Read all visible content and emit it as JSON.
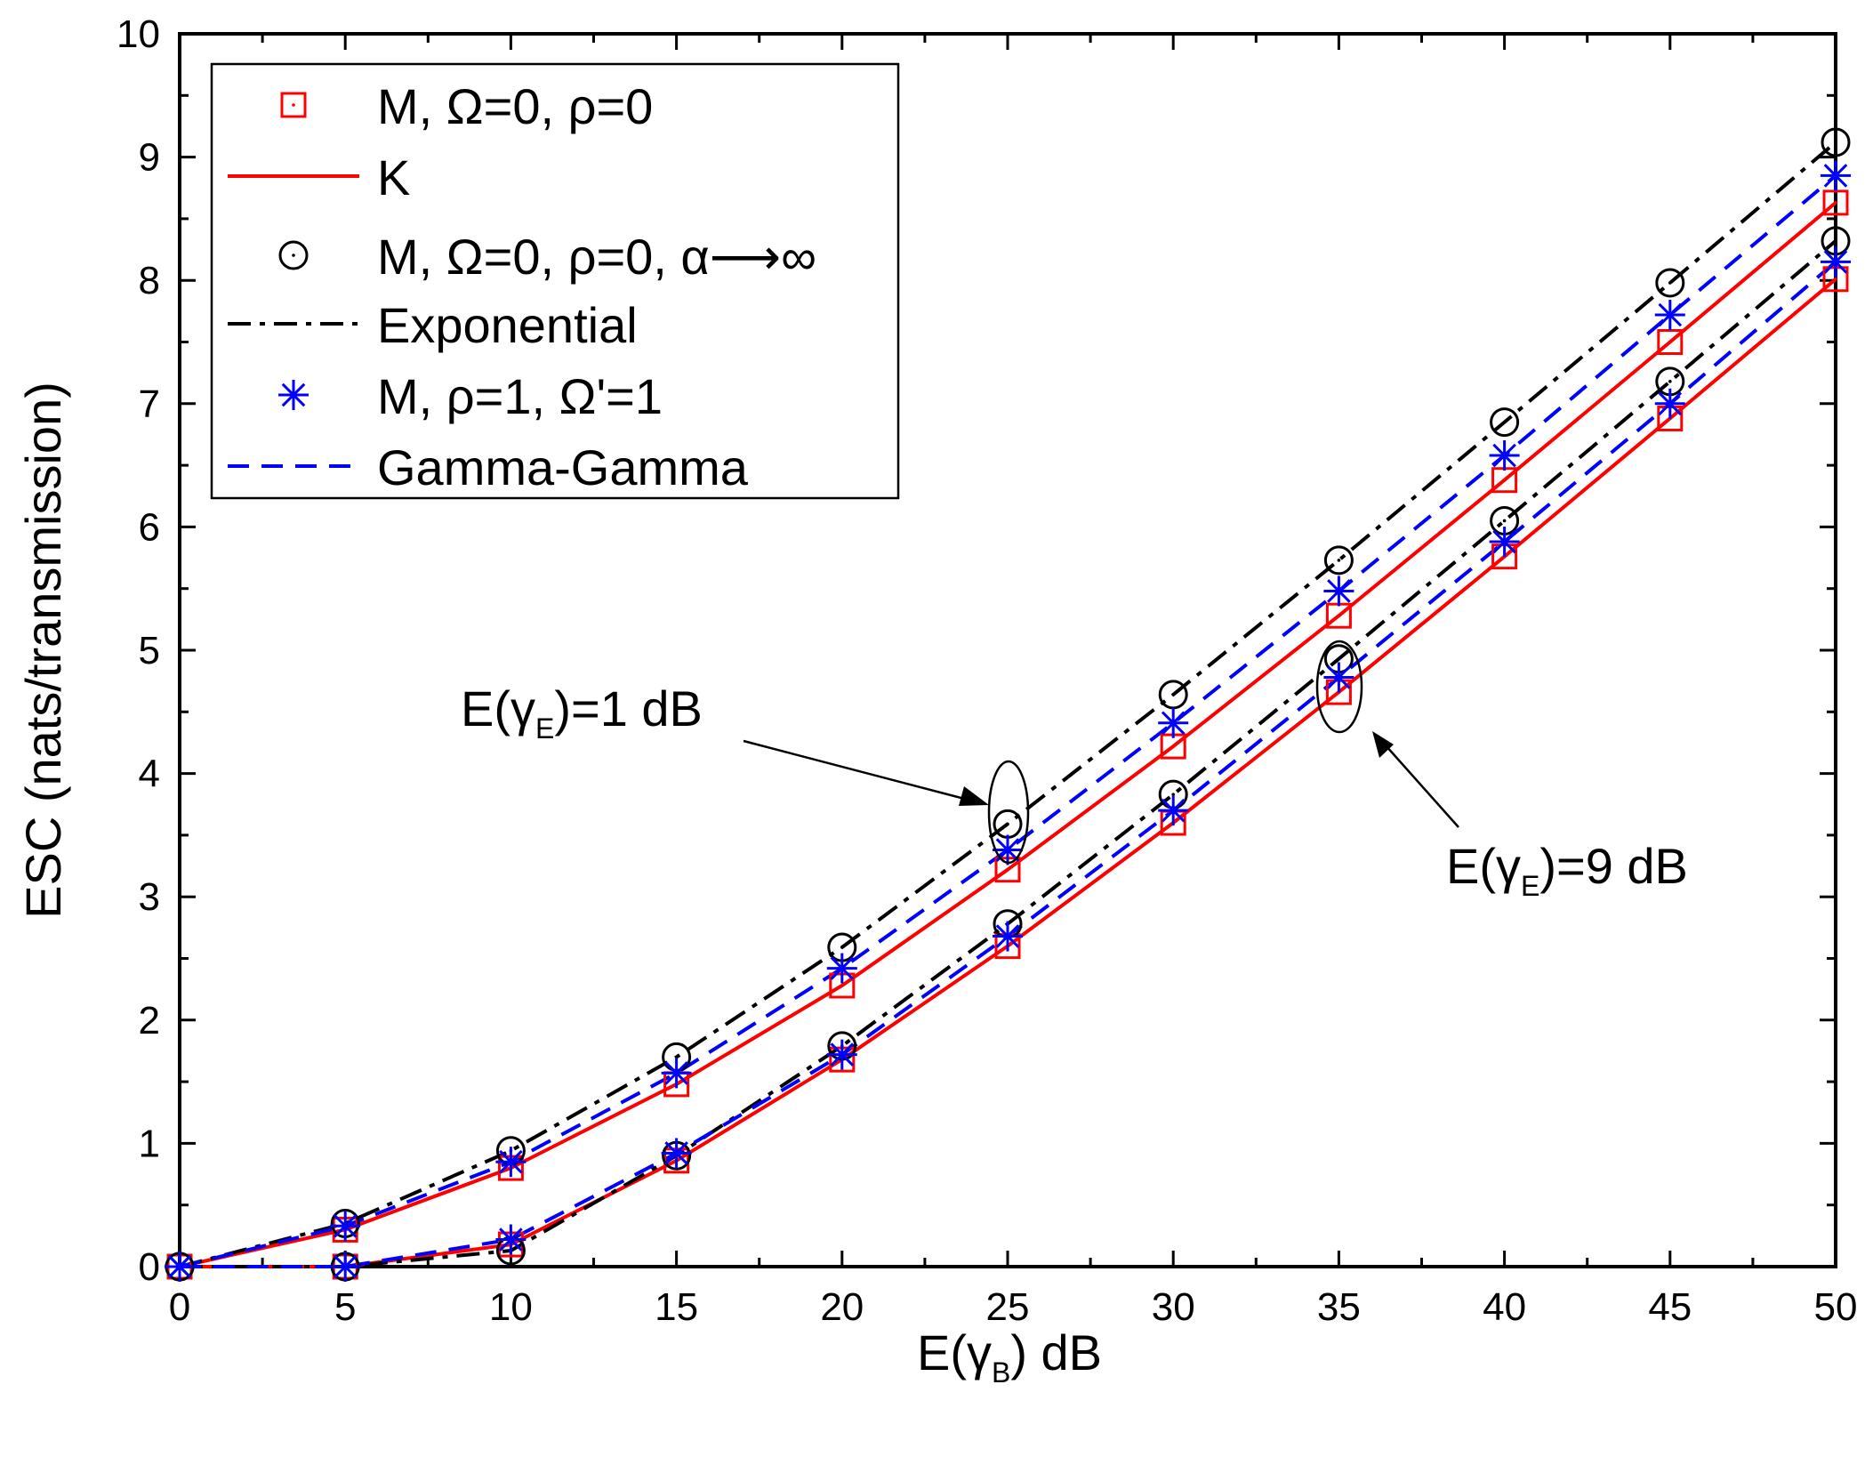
{
  "chart_data": {
    "type": "line",
    "xlabel": "E(γ_B) dB",
    "ylabel": "ESC (nats/transmission)",
    "xlim": [
      0,
      50
    ],
    "ylim": [
      0,
      10
    ],
    "xticks": [
      0,
      5,
      10,
      15,
      20,
      25,
      30,
      35,
      40,
      45,
      50
    ],
    "yticks": [
      0,
      1,
      2,
      3,
      4,
      5,
      6,
      7,
      8,
      9,
      10
    ],
    "legend_position": "top-left",
    "legend": [
      {
        "label": "M, Ω=0, ρ=0",
        "marker": "square",
        "color": "#ff0000"
      },
      {
        "label": "K",
        "style": "solid",
        "color": "#ff0000"
      },
      {
        "label": "M, Ω=0, ρ=0, α⟶∞",
        "marker": "circle",
        "color": "#000000"
      },
      {
        "label": "Exponential",
        "style": "dashdot",
        "color": "#000000"
      },
      {
        "label": "M, ρ=1, Ω'=1",
        "marker": "asterisk",
        "color": "#0000ff"
      },
      {
        "label": "Gamma-Gamma",
        "style": "dashed",
        "color": "#0000ff"
      }
    ],
    "x": [
      0,
      5,
      10,
      15,
      20,
      25,
      30,
      35,
      40,
      45,
      50
    ],
    "series": [
      {
        "name": "K",
        "group": "E(γ_E)=1 dB",
        "style": "solid",
        "marker": "square",
        "color": "#ff0000",
        "values": [
          0.0,
          0.3,
          0.8,
          1.48,
          2.28,
          3.22,
          4.22,
          5.28,
          6.38,
          7.5,
          8.63
        ]
      },
      {
        "name": "Exponential",
        "group": "E(γ_E)=1 dB",
        "style": "dashdot",
        "marker": "circle",
        "color": "#000000",
        "values": [
          0.0,
          0.35,
          0.94,
          1.7,
          2.59,
          3.59,
          4.64,
          5.73,
          6.85,
          7.98,
          9.12
        ]
      },
      {
        "name": "Gamma-Gamma",
        "group": "E(γ_E)=1 dB",
        "style": "dashed",
        "marker": "asterisk",
        "color": "#0000ff",
        "values": [
          0.0,
          0.33,
          0.85,
          1.57,
          2.42,
          3.38,
          4.41,
          5.48,
          6.58,
          7.72,
          8.85
        ]
      },
      {
        "name": "K",
        "group": "E(γ_E)=9 dB",
        "style": "solid",
        "marker": "square",
        "color": "#ff0000",
        "values": [
          0.0,
          0.0,
          0.18,
          0.86,
          1.68,
          2.6,
          3.6,
          4.66,
          5.76,
          6.88,
          8.01
        ]
      },
      {
        "name": "Exponential",
        "group": "E(γ_E)=9 dB",
        "style": "dashdot",
        "marker": "circle",
        "color": "#000000",
        "values": [
          0.0,
          0.0,
          0.13,
          0.9,
          1.79,
          2.78,
          3.83,
          4.93,
          6.05,
          7.18,
          8.32
        ]
      },
      {
        "name": "Gamma-Gamma",
        "group": "E(γ_E)=9 dB",
        "style": "dashed",
        "marker": "asterisk",
        "color": "#0000ff",
        "values": [
          0.0,
          0.0,
          0.22,
          0.92,
          1.72,
          2.68,
          3.7,
          4.78,
          5.88,
          7.0,
          8.15
        ]
      }
    ],
    "annotations": [
      {
        "text": "E(γ_E)=1 dB",
        "points_to": {
          "x": 25,
          "y": 3.4
        }
      },
      {
        "text": "E(γ_E)=9 dB",
        "points_to": {
          "x": 35,
          "y": 4.8
        }
      }
    ]
  },
  "text": {
    "xlabel_main": "E(γ",
    "xlabel_sub": "B",
    "xlabel_tail": ") dB",
    "ylabel": "ESC (nats/transmission)",
    "annot1_main": "E(γ",
    "annot1_sub": "E",
    "annot1_tail": ")=1 dB",
    "annot2_main": "E(γ",
    "annot2_sub": "E",
    "annot2_tail": ")=9 dB"
  },
  "colors": {
    "red": "#ff0000",
    "black": "#000000",
    "blue": "#0000ff"
  }
}
